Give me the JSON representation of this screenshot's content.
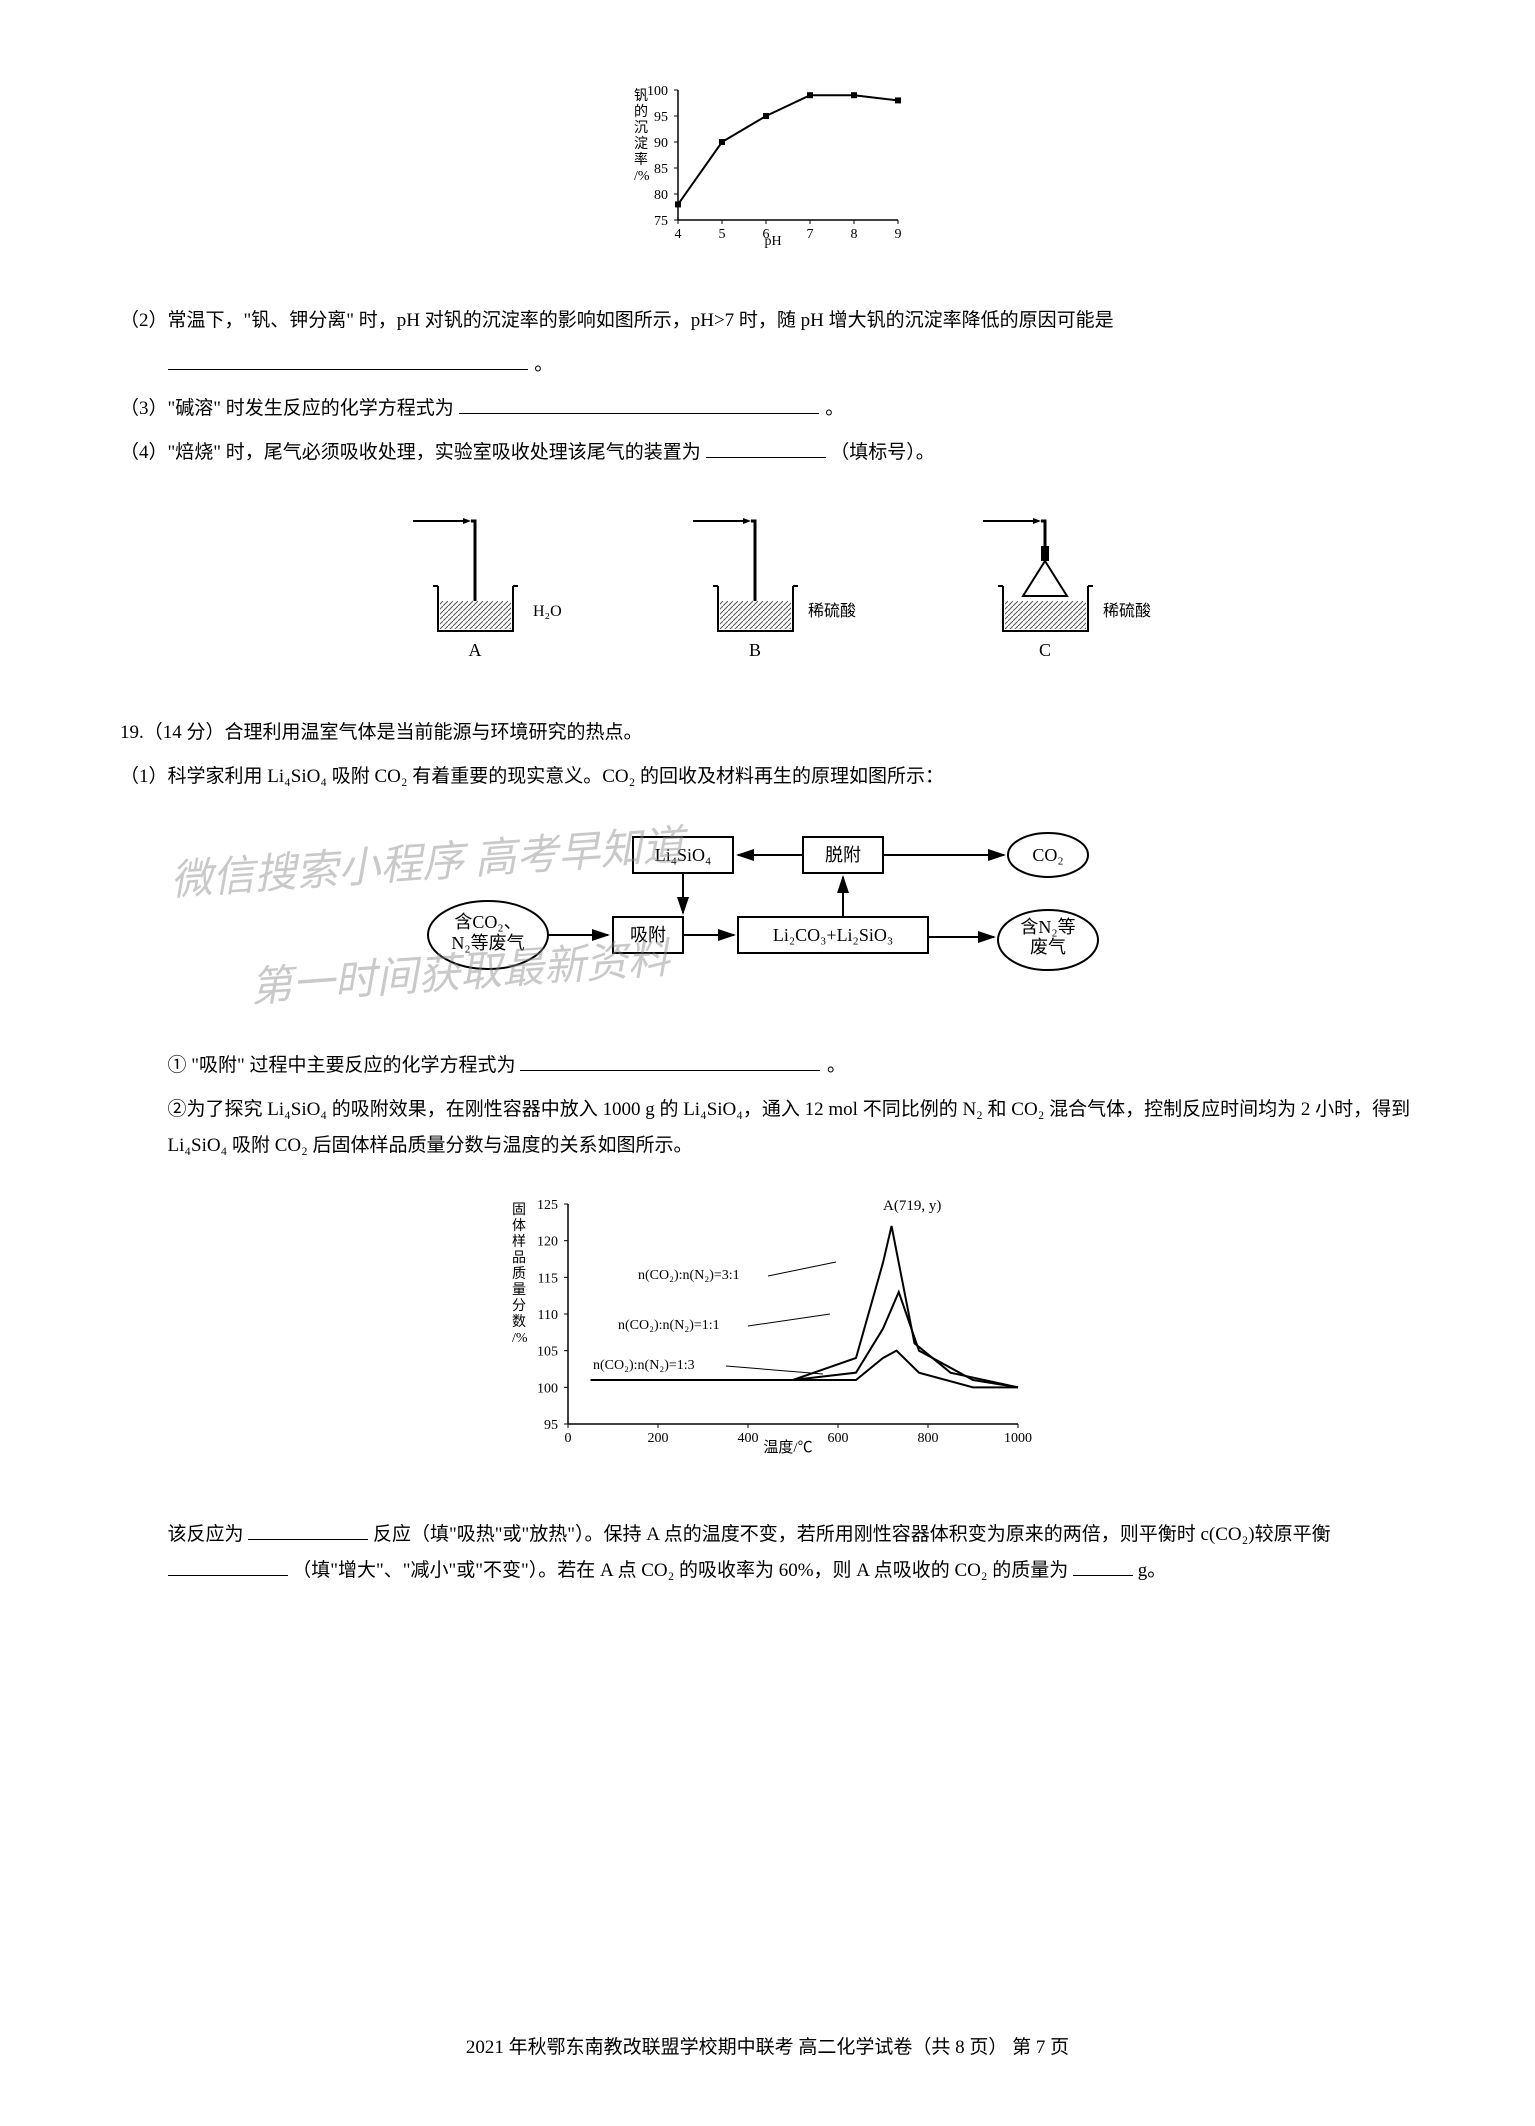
{
  "chart1": {
    "type": "line",
    "xlabel": "pH",
    "ylabel_cn": "钒的沉淀率/%",
    "xlim": [
      4,
      9
    ],
    "xtick_step": 1,
    "ylim": [
      75,
      100
    ],
    "ytick_step": 5,
    "points_x": [
      4,
      5,
      6,
      7,
      8,
      9
    ],
    "points_y": [
      78,
      90,
      95,
      99,
      99,
      98
    ],
    "line_color": "#000000",
    "marker": "square",
    "marker_size": 6,
    "background_color": "#ffffff",
    "grid_color": "#000000",
    "label_fontsize": 14,
    "tick_fontsize": 14
  },
  "q2": {
    "prefix": "（2）常温下，\"钒、钾分离\" 时，pH 对钒的沉淀率的影响如图所示，pH>7 时，随 pH 增大钒的沉淀率降低的原因可能是",
    "suffix": "。"
  },
  "q3": {
    "text": "（3）\"碱溶\" 时发生反应的化学方程式为",
    "suffix": "。"
  },
  "q4": {
    "text": "（4）\"焙烧\" 时，尾气必须吸收处理，实验室吸收处理该尾气的装置为",
    "hint": "（填标号）。"
  },
  "apparatus": {
    "labels": [
      "A",
      "B",
      "C"
    ],
    "liquids": [
      "H₂O",
      "稀硫酸",
      "稀硫酸"
    ],
    "beaker_stroke": "#000000",
    "shading_color": "#666666"
  },
  "q19": {
    "header": "19.（14 分）合理利用温室气体是当前能源与环境研究的热点。",
    "sub1": "（1）科学家利用 Li₄SiO₄ 吸附 CO₂ 有着重要的现实意义。CO₂ 的回收及材料再生的原理如图所示：",
    "flow": {
      "boxes": {
        "top_left": "Li₄SiO₄",
        "top_right": "脱附",
        "mid_left": "吸附",
        "mid_right": "Li₂CO₃+Li₂SiO₃"
      },
      "ovals": {
        "left": "含CO₂、\nN₂等废气",
        "right_top": "CO₂",
        "right_bottom": "含N₂等\n废气"
      },
      "box_stroke": "#000000",
      "box_fill": "#ffffff",
      "arrow_color": "#000000",
      "text_fontsize": 18
    },
    "step1": "① \"吸附\" 过程中主要反应的化学方程式为",
    "step1_suffix": "。",
    "step2": "②为了探究 Li₄SiO₄ 的吸附效果，在刚性容器中放入 1000 g 的 Li₄SiO₄，通入 12 mol 不同比例的 N₂ 和 CO₂ 混合气体，控制反应时间均为 2 小时，得到 Li₄SiO₄ 吸附 CO₂ 后固体样品质量分数与温度的关系如图所示。",
    "chart2": {
      "type": "line",
      "xlabel": "温度/℃",
      "ylabel_cn": "固体样品质量分数/%",
      "xlim": [
        0,
        1000
      ],
      "xtick_step": 200,
      "ylim": [
        95,
        125
      ],
      "ytick_step": 5,
      "series": [
        {
          "label": "n(CO₂):n(N₂)=3:1",
          "color": "#000000",
          "x": [
            50,
            300,
            500,
            640,
            700,
            719,
            770,
            850,
            1000
          ],
          "y": [
            101,
            101,
            101,
            104,
            117,
            122,
            106,
            102,
            100
          ]
        },
        {
          "label": "n(CO₂):n(N₂)=1:1",
          "color": "#000000",
          "x": [
            50,
            300,
            500,
            640,
            700,
            735,
            780,
            900,
            1000
          ],
          "y": [
            101,
            101,
            101,
            102,
            108,
            113,
            105,
            101,
            100
          ]
        },
        {
          "label": "n(CO₂):n(N₂)=1:3",
          "color": "#000000",
          "x": [
            50,
            300,
            500,
            640,
            700,
            730,
            780,
            900,
            1000
          ],
          "y": [
            101,
            101,
            101,
            101,
            104,
            105,
            102,
            100,
            100
          ]
        }
      ],
      "peak_annot": "A(719, y)",
      "label_fontsize": 14,
      "tick_fontsize": 14,
      "background_color": "#ffffff"
    },
    "tail1a": "该反应为",
    "tail1b": "反应（填\"吸热\"或\"放热\"）。保持 A 点的温度不变，若所用刚性容器体积变为原来的两倍，则平衡时 c(CO₂)较原平衡",
    "tail1c": "（填\"增大\"、\"减小\"或\"不变\"）。若在 A 点 CO₂ 的吸收率为 60%，则 A 点吸收的 CO₂ 的质量为",
    "tail1d": "g。"
  },
  "watermark": {
    "line1": "微信搜索小程序   高考早知道",
    "line2": "第一时间获取最新资料",
    "color": "#888888",
    "fontsize": 42
  },
  "footer": "2021 年秋鄂东南教改联盟学校期中联考  高二化学试卷（共 8 页） 第 7 页"
}
